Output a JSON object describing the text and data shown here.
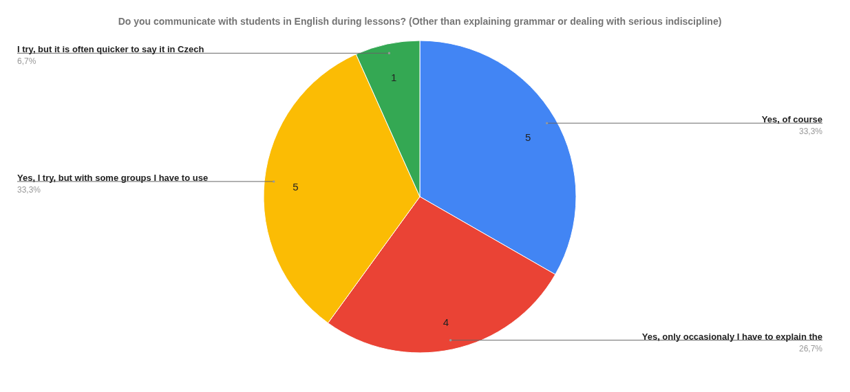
{
  "chart_data": {
    "type": "pie",
    "title": "Do you communicate with students in English during lessons? (Other than explaining grammar or dealing with serious indiscipline)",
    "categories": [
      "Yes, of course",
      "Yes, only occasionaly I have to explain the",
      "Yes, I try, but with some groups I have to use",
      "I try, but it is often quicker to say it in Czech"
    ],
    "values": [
      33.3,
      26.7,
      33.3,
      6.7
    ],
    "colors": [
      "#4285f4",
      "#ea4335",
      "#fbbc04",
      "#34a853"
    ],
    "value_labels": [
      "33,3%",
      "26,7%",
      "33,3%",
      "6,7%"
    ],
    "annotations": [
      "5",
      "4",
      "5",
      "1"
    ],
    "legend": false
  }
}
